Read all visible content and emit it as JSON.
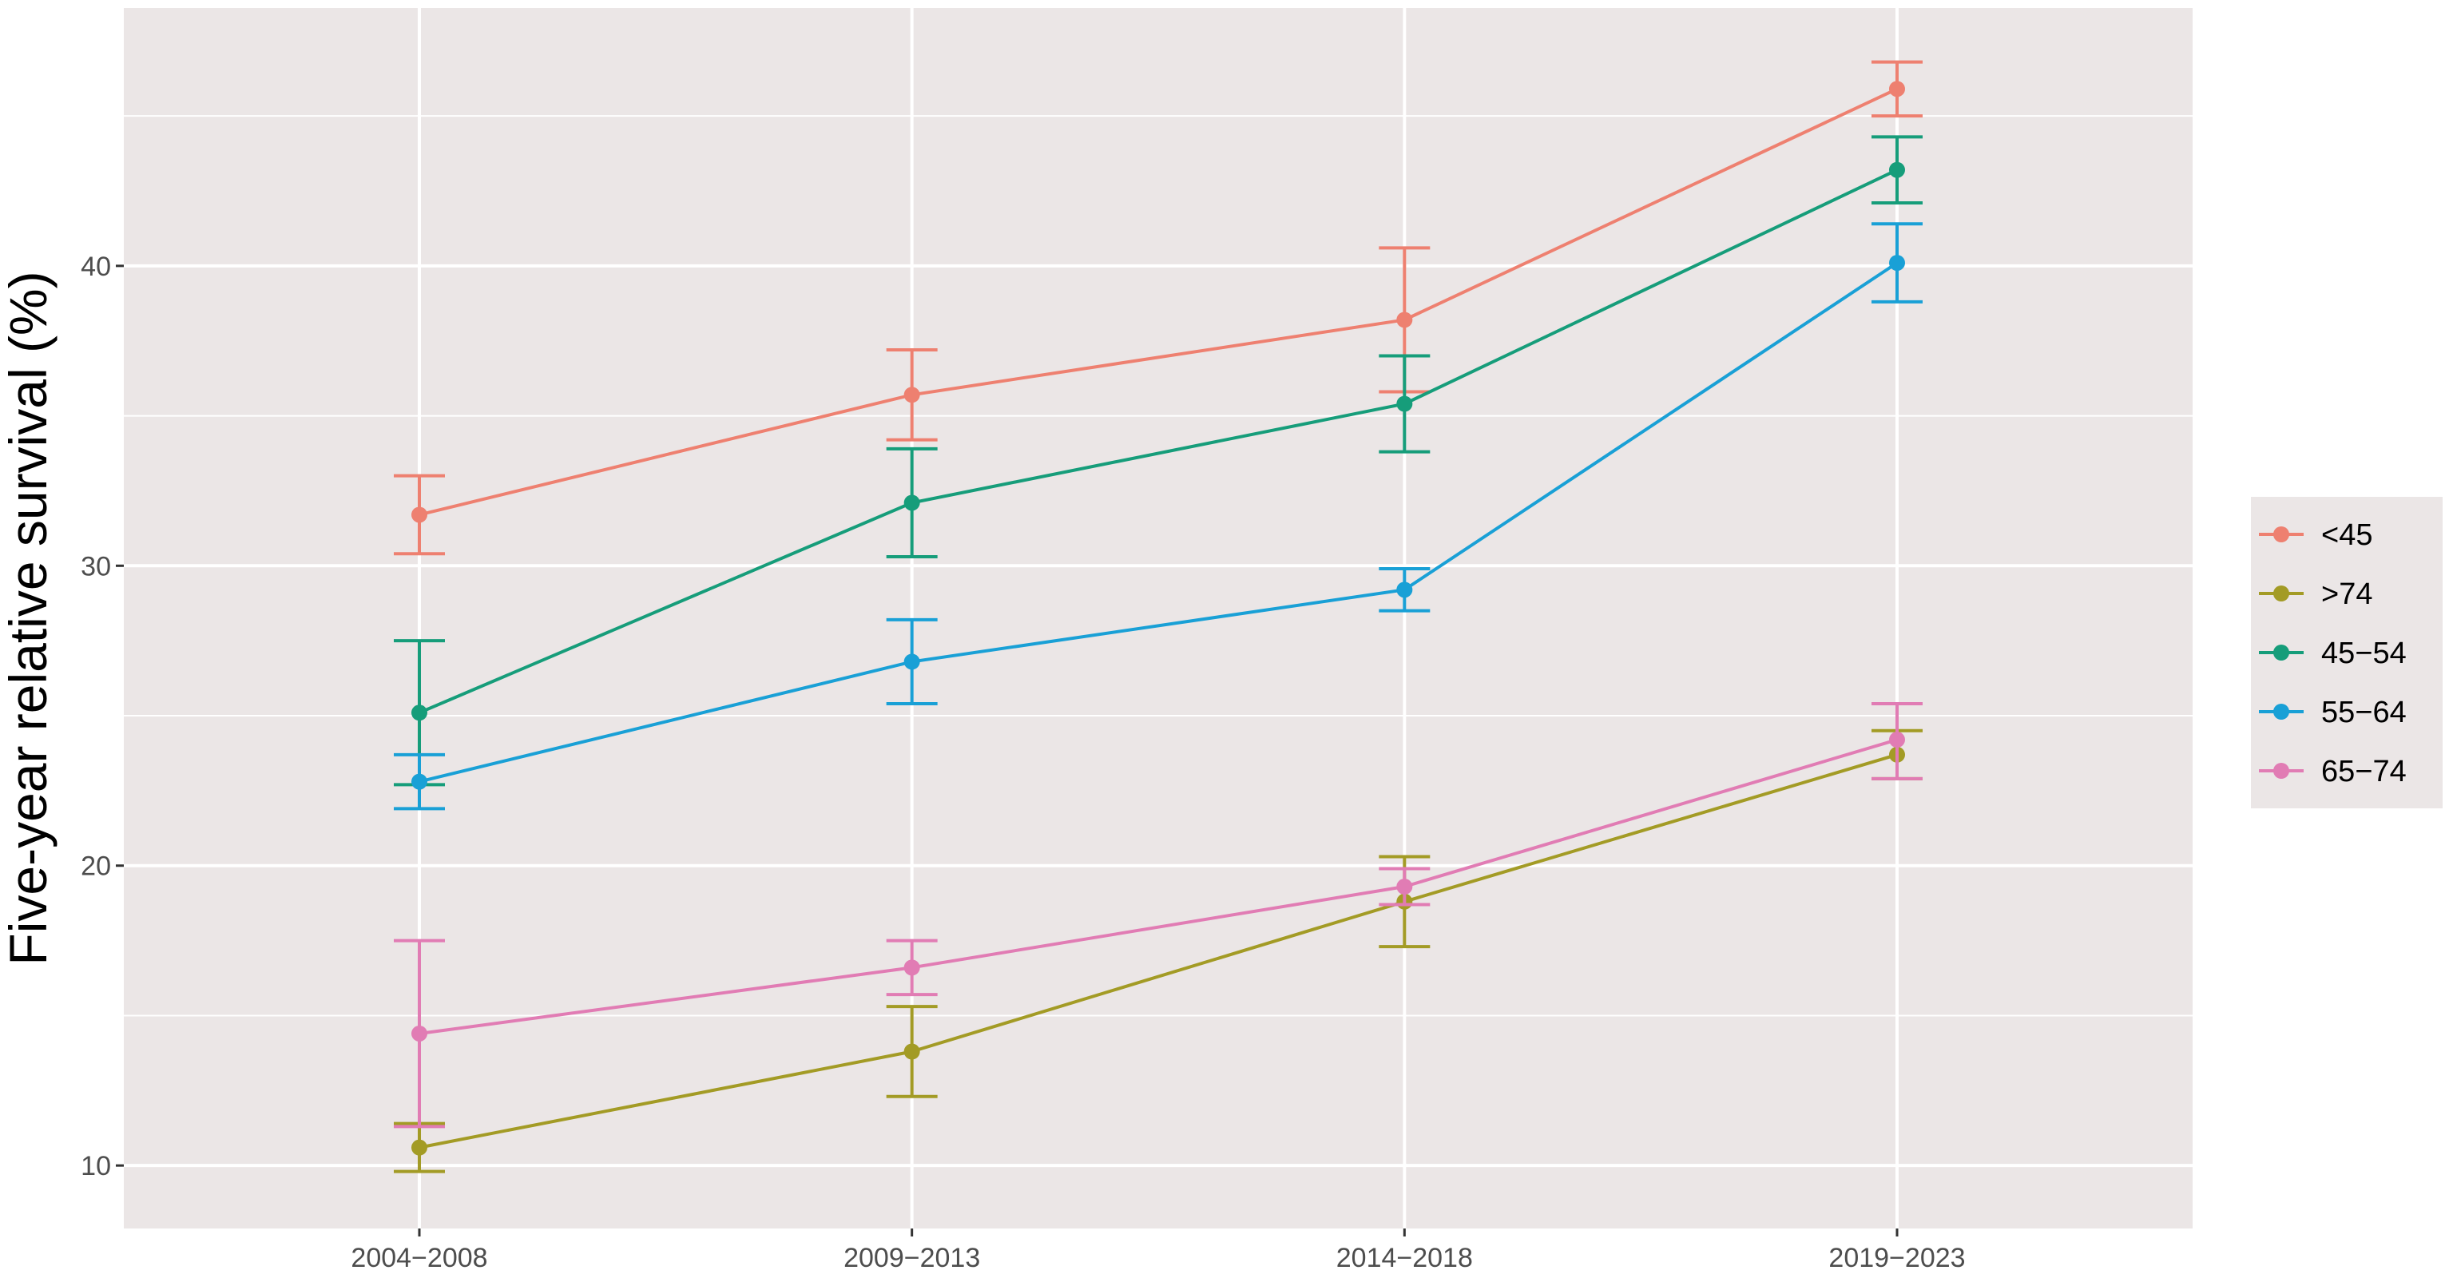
{
  "chart_data": {
    "type": "line",
    "title": "",
    "xlabel": "",
    "ylabel": "Five-year relative survival (%)",
    "categories": [
      "2004−2008",
      "2009−2013",
      "2014−2018",
      "2019−2023"
    ],
    "yticks": [
      "10",
      "20",
      "30",
      "40"
    ],
    "ylim": [
      7.9,
      48.6
    ],
    "grid": true,
    "legend_position": "right",
    "background_color": "#ebe6e6",
    "series": [
      {
        "name": "<45",
        "color": "#ee8070",
        "values": [
          31.7,
          35.7,
          38.2,
          45.9
        ],
        "lower": [
          30.4,
          34.2,
          35.8,
          45.0
        ],
        "upper": [
          33.0,
          37.2,
          40.6,
          46.8
        ]
      },
      {
        "name": ">74",
        "color": "#a39b25",
        "values": [
          10.6,
          13.8,
          18.8,
          23.7
        ],
        "lower": [
          9.8,
          12.3,
          17.3,
          22.9
        ],
        "upper": [
          11.4,
          15.3,
          20.3,
          24.5
        ]
      },
      {
        "name": "45−54",
        "color": "#169d7a",
        "values": [
          25.1,
          32.1,
          35.4,
          43.2
        ],
        "lower": [
          22.7,
          30.3,
          33.8,
          42.1
        ],
        "upper": [
          27.5,
          33.9,
          37.0,
          44.3
        ]
      },
      {
        "name": "55−64",
        "color": "#19a0d6",
        "values": [
          22.8,
          26.8,
          29.2,
          40.1
        ],
        "lower": [
          21.9,
          25.4,
          28.5,
          38.8
        ],
        "upper": [
          23.7,
          28.2,
          29.9,
          41.4
        ]
      },
      {
        "name": "65−74",
        "color": "#e17cb4",
        "values": [
          14.4,
          16.6,
          19.3,
          24.2
        ],
        "lower": [
          11.3,
          15.7,
          18.7,
          22.9
        ],
        "upper": [
          17.5,
          17.5,
          19.9,
          25.4
        ]
      }
    ]
  }
}
